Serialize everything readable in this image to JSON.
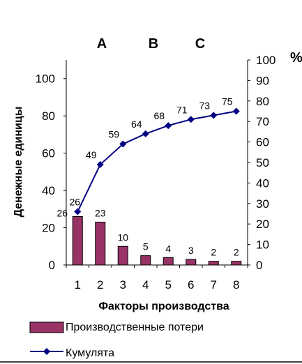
{
  "chart_data": {
    "type": "bar+line",
    "categories": [
      "1",
      "2",
      "3",
      "4",
      "5",
      "6",
      "7",
      "8"
    ],
    "series": [
      {
        "name": "Производственные потери",
        "type": "bar",
        "axis": "left",
        "values": [
          26,
          23,
          10,
          5,
          4,
          3,
          2,
          2
        ],
        "color": "#993366"
      },
      {
        "name": "Кумулята",
        "type": "line",
        "axis": "right",
        "values": [
          26,
          49,
          59,
          64,
          68,
          71,
          73,
          75
        ],
        "color": "#000080",
        "marker": "diamond"
      }
    ],
    "xlabel": "Факторы производства",
    "ylabel": "Денежные единицы",
    "y2label": "%",
    "ylim": [
      0,
      110
    ],
    "y2lim": [
      0,
      100
    ],
    "yticks": [
      "0",
      "20",
      "40",
      "60",
      "80",
      "100"
    ],
    "y2ticks": [
      "0",
      "10",
      "20",
      "30",
      "40",
      "50",
      "60",
      "70",
      "80",
      "90",
      "100"
    ],
    "groups": [
      "A",
      "B",
      "C"
    ],
    "grid": false,
    "legend_position": "bottom"
  }
}
